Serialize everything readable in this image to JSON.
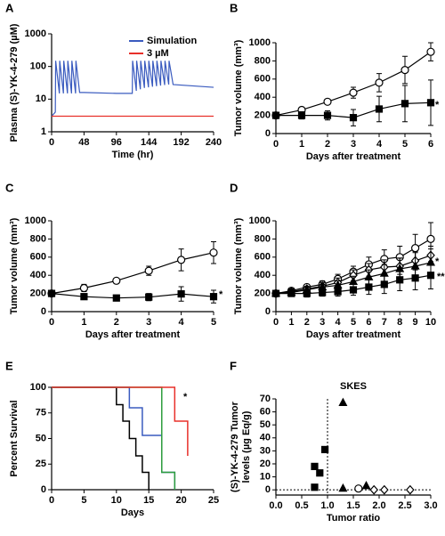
{
  "chart_data": [
    {
      "type": "line",
      "label": "A",
      "ylabel": "Plasma (S)-YK-4-279 (µM)",
      "xlabel": "Time (hr)",
      "log_y": true,
      "legend": "upper right",
      "xlim": [
        0,
        240
      ],
      "xticks": [
        0,
        48,
        96,
        144,
        192,
        240
      ],
      "ylim": [
        1,
        1000
      ],
      "yticks": [
        1,
        10,
        100,
        1000
      ],
      "series": [
        {
          "name": "Simulation",
          "color": "#3a5bbf",
          "x": [
            0,
            5.5,
            6,
            11.5,
            12,
            17.5,
            18,
            23.5,
            24,
            29.5,
            30,
            35.5,
            36,
            41.5,
            48,
            96,
            119.5,
            120,
            125.5,
            126,
            131.5,
            132,
            137.5,
            138,
            143.5,
            144,
            149.5,
            150,
            155.5,
            156,
            161.5,
            162,
            167.5,
            168,
            173.5,
            174,
            180,
            240
          ],
          "values": [
            3,
            4,
            150,
            15,
            150,
            15,
            150,
            15,
            150,
            15,
            150,
            15,
            150,
            16,
            16,
            15,
            15,
            150,
            18,
            150,
            20,
            150,
            22,
            150,
            23,
            150,
            24,
            150,
            25,
            150,
            26,
            150,
            27,
            150,
            28,
            150,
            28,
            23
          ]
        },
        {
          "name": "3 µM",
          "color": "#e8302a",
          "x": [
            0,
            240
          ],
          "values": [
            3,
            3
          ]
        }
      ]
    },
    {
      "type": "line",
      "label": "B",
      "ylabel": "Tumor volume (mm³)",
      "xlabel": "Days after treatment",
      "annotations": [
        "*"
      ],
      "xlim": [
        0,
        6
      ],
      "xticks": [
        0,
        1,
        2,
        3,
        4,
        5,
        6
      ],
      "ylim": [
        0,
        1000
      ],
      "yticks": [
        0,
        200,
        400,
        600,
        800,
        1000
      ],
      "x": [
        0,
        1,
        2,
        3,
        4,
        5,
        6
      ],
      "series": [
        {
          "marker": "circle-open",
          "color": "#000000",
          "values": [
            200,
            260,
            350,
            450,
            560,
            700,
            900
          ],
          "errors": [
            0,
            30,
            20,
            60,
            100,
            150,
            100
          ]
        },
        {
          "marker": "square",
          "color": "#000000",
          "values": [
            200,
            200,
            200,
            175,
            270,
            330,
            340
          ],
          "errors": [
            0,
            40,
            50,
            90,
            140,
            200,
            250
          ]
        }
      ]
    },
    {
      "type": "line",
      "label": "C",
      "ylabel": "Tumor volume (mm³)",
      "xlabel": "Days after treatment",
      "annotations": [
        "*"
      ],
      "xlim": [
        0,
        5
      ],
      "xticks": [
        0,
        1,
        2,
        3,
        4,
        5
      ],
      "ylim": [
        0,
        1000
      ],
      "yticks": [
        0,
        200,
        400,
        600,
        800,
        1000
      ],
      "x": [
        0,
        1,
        2,
        3,
        4,
        5
      ],
      "series": [
        {
          "marker": "circle-open",
          "color": "#000000",
          "values": [
            200,
            260,
            340,
            450,
            570,
            650
          ],
          "errors": [
            0,
            40,
            20,
            50,
            120,
            120
          ]
        },
        {
          "marker": "square",
          "color": "#000000",
          "values": [
            200,
            165,
            150,
            160,
            195,
            165
          ],
          "errors": [
            0,
            30,
            20,
            40,
            80,
            70
          ]
        }
      ]
    },
    {
      "type": "line",
      "label": "D",
      "ylabel": "Tumor volume (mm³)",
      "xlabel": "Days after treatment",
      "annotations": [
        "*",
        "**"
      ],
      "xlim": [
        0,
        10
      ],
      "xticks": [
        0,
        1,
        2,
        3,
        4,
        5,
        6,
        7,
        8,
        9,
        10
      ],
      "ylim": [
        0,
        1000
      ],
      "yticks": [
        0,
        200,
        400,
        600,
        800,
        1000
      ],
      "x": [
        0,
        1,
        2,
        3,
        4,
        5,
        6,
        7,
        8,
        9,
        10
      ],
      "series": [
        {
          "marker": "circle-open",
          "color": "#000000",
          "values": [
            200,
            230,
            270,
            300,
            360,
            440,
            520,
            580,
            600,
            700,
            800
          ],
          "errors": [
            0,
            30,
            30,
            40,
            50,
            60,
            80,
            100,
            120,
            150,
            180
          ]
        },
        {
          "marker": "diamond-open",
          "color": "#000000",
          "values": [
            200,
            220,
            250,
            280,
            320,
            400,
            460,
            490,
            500,
            560,
            620
          ],
          "errors": [
            0,
            30,
            30,
            40,
            50,
            60,
            70,
            80,
            90,
            100,
            100
          ]
        },
        {
          "marker": "triangle",
          "color": "#000000",
          "values": [
            200,
            210,
            240,
            270,
            290,
            330,
            380,
            420,
            470,
            500,
            540
          ],
          "errors": [
            0,
            30,
            30,
            30,
            50,
            60,
            80,
            100,
            120,
            150,
            150
          ]
        },
        {
          "marker": "square",
          "color": "#000000",
          "values": [
            200,
            200,
            200,
            210,
            220,
            240,
            270,
            300,
            350,
            370,
            400
          ],
          "errors": [
            0,
            30,
            40,
            40,
            50,
            60,
            80,
            100,
            120,
            130,
            150
          ]
        }
      ]
    },
    {
      "type": "step",
      "label": "E",
      "ylabel": "Percent Survival",
      "xlabel": "Days",
      "annotations": [
        "*"
      ],
      "xlim": [
        0,
        25
      ],
      "xticks": [
        0,
        5,
        10,
        15,
        20,
        25
      ],
      "ylim": [
        0,
        100
      ],
      "yticks": [
        0,
        25,
        50,
        75,
        100
      ],
      "series": [
        {
          "color": "#000000",
          "x": [
            0,
            10,
            11,
            12,
            13,
            14,
            15
          ],
          "values": [
            100,
            83,
            67,
            50,
            33,
            17,
            0
          ]
        },
        {
          "color": "#3a5bbf",
          "x": [
            0,
            12,
            14,
            17,
            19
          ],
          "values": [
            100,
            80,
            53,
            17,
            0
          ]
        },
        {
          "color": "#2e9e3e",
          "x": [
            0,
            17,
            19
          ],
          "values": [
            100,
            17,
            0
          ]
        },
        {
          "color": "#e8302a",
          "x": [
            0,
            19,
            21
          ],
          "values": [
            100,
            67,
            33
          ]
        }
      ]
    },
    {
      "type": "scatter",
      "label": "F",
      "title": "SKES",
      "ylabel": [
        "(S)-YK-4-279 Tumor",
        "levels (µg Eq/g)"
      ],
      "xlabel": "Tumor ratio",
      "xlim": [
        0,
        3
      ],
      "xticks": [
        {
          "value": 0,
          "label": "0.0"
        },
        0.5,
        {
          "value": 1,
          "label": "1.0"
        },
        1.5,
        {
          "value": 2,
          "label": "2.0"
        },
        2.5,
        {
          "value": 3,
          "label": "3.0"
        }
      ],
      "ylim": [
        -4,
        70
      ],
      "yticks": [
        0,
        10,
        20,
        30,
        40,
        50,
        60,
        70
      ],
      "vline": 1,
      "hline": 0,
      "series": [
        {
          "marker": "square",
          "color": "#000000",
          "x": [
            0.75,
            0.85,
            0.95,
            0.75
          ],
          "values": [
            18,
            13,
            31,
            2
          ]
        },
        {
          "marker": "triangle",
          "color": "#000000",
          "x": [
            1.3,
            1.3,
            1.75
          ],
          "values": [
            67,
            1,
            3
          ]
        },
        {
          "marker": "circle-open",
          "color": "#000000",
          "x": [
            1.6
          ],
          "values": [
            1
          ]
        },
        {
          "marker": "diamond-open",
          "color": "#000000",
          "x": [
            1.9,
            2.1,
            2.6
          ],
          "values": [
            0,
            0,
            0
          ]
        }
      ]
    }
  ]
}
